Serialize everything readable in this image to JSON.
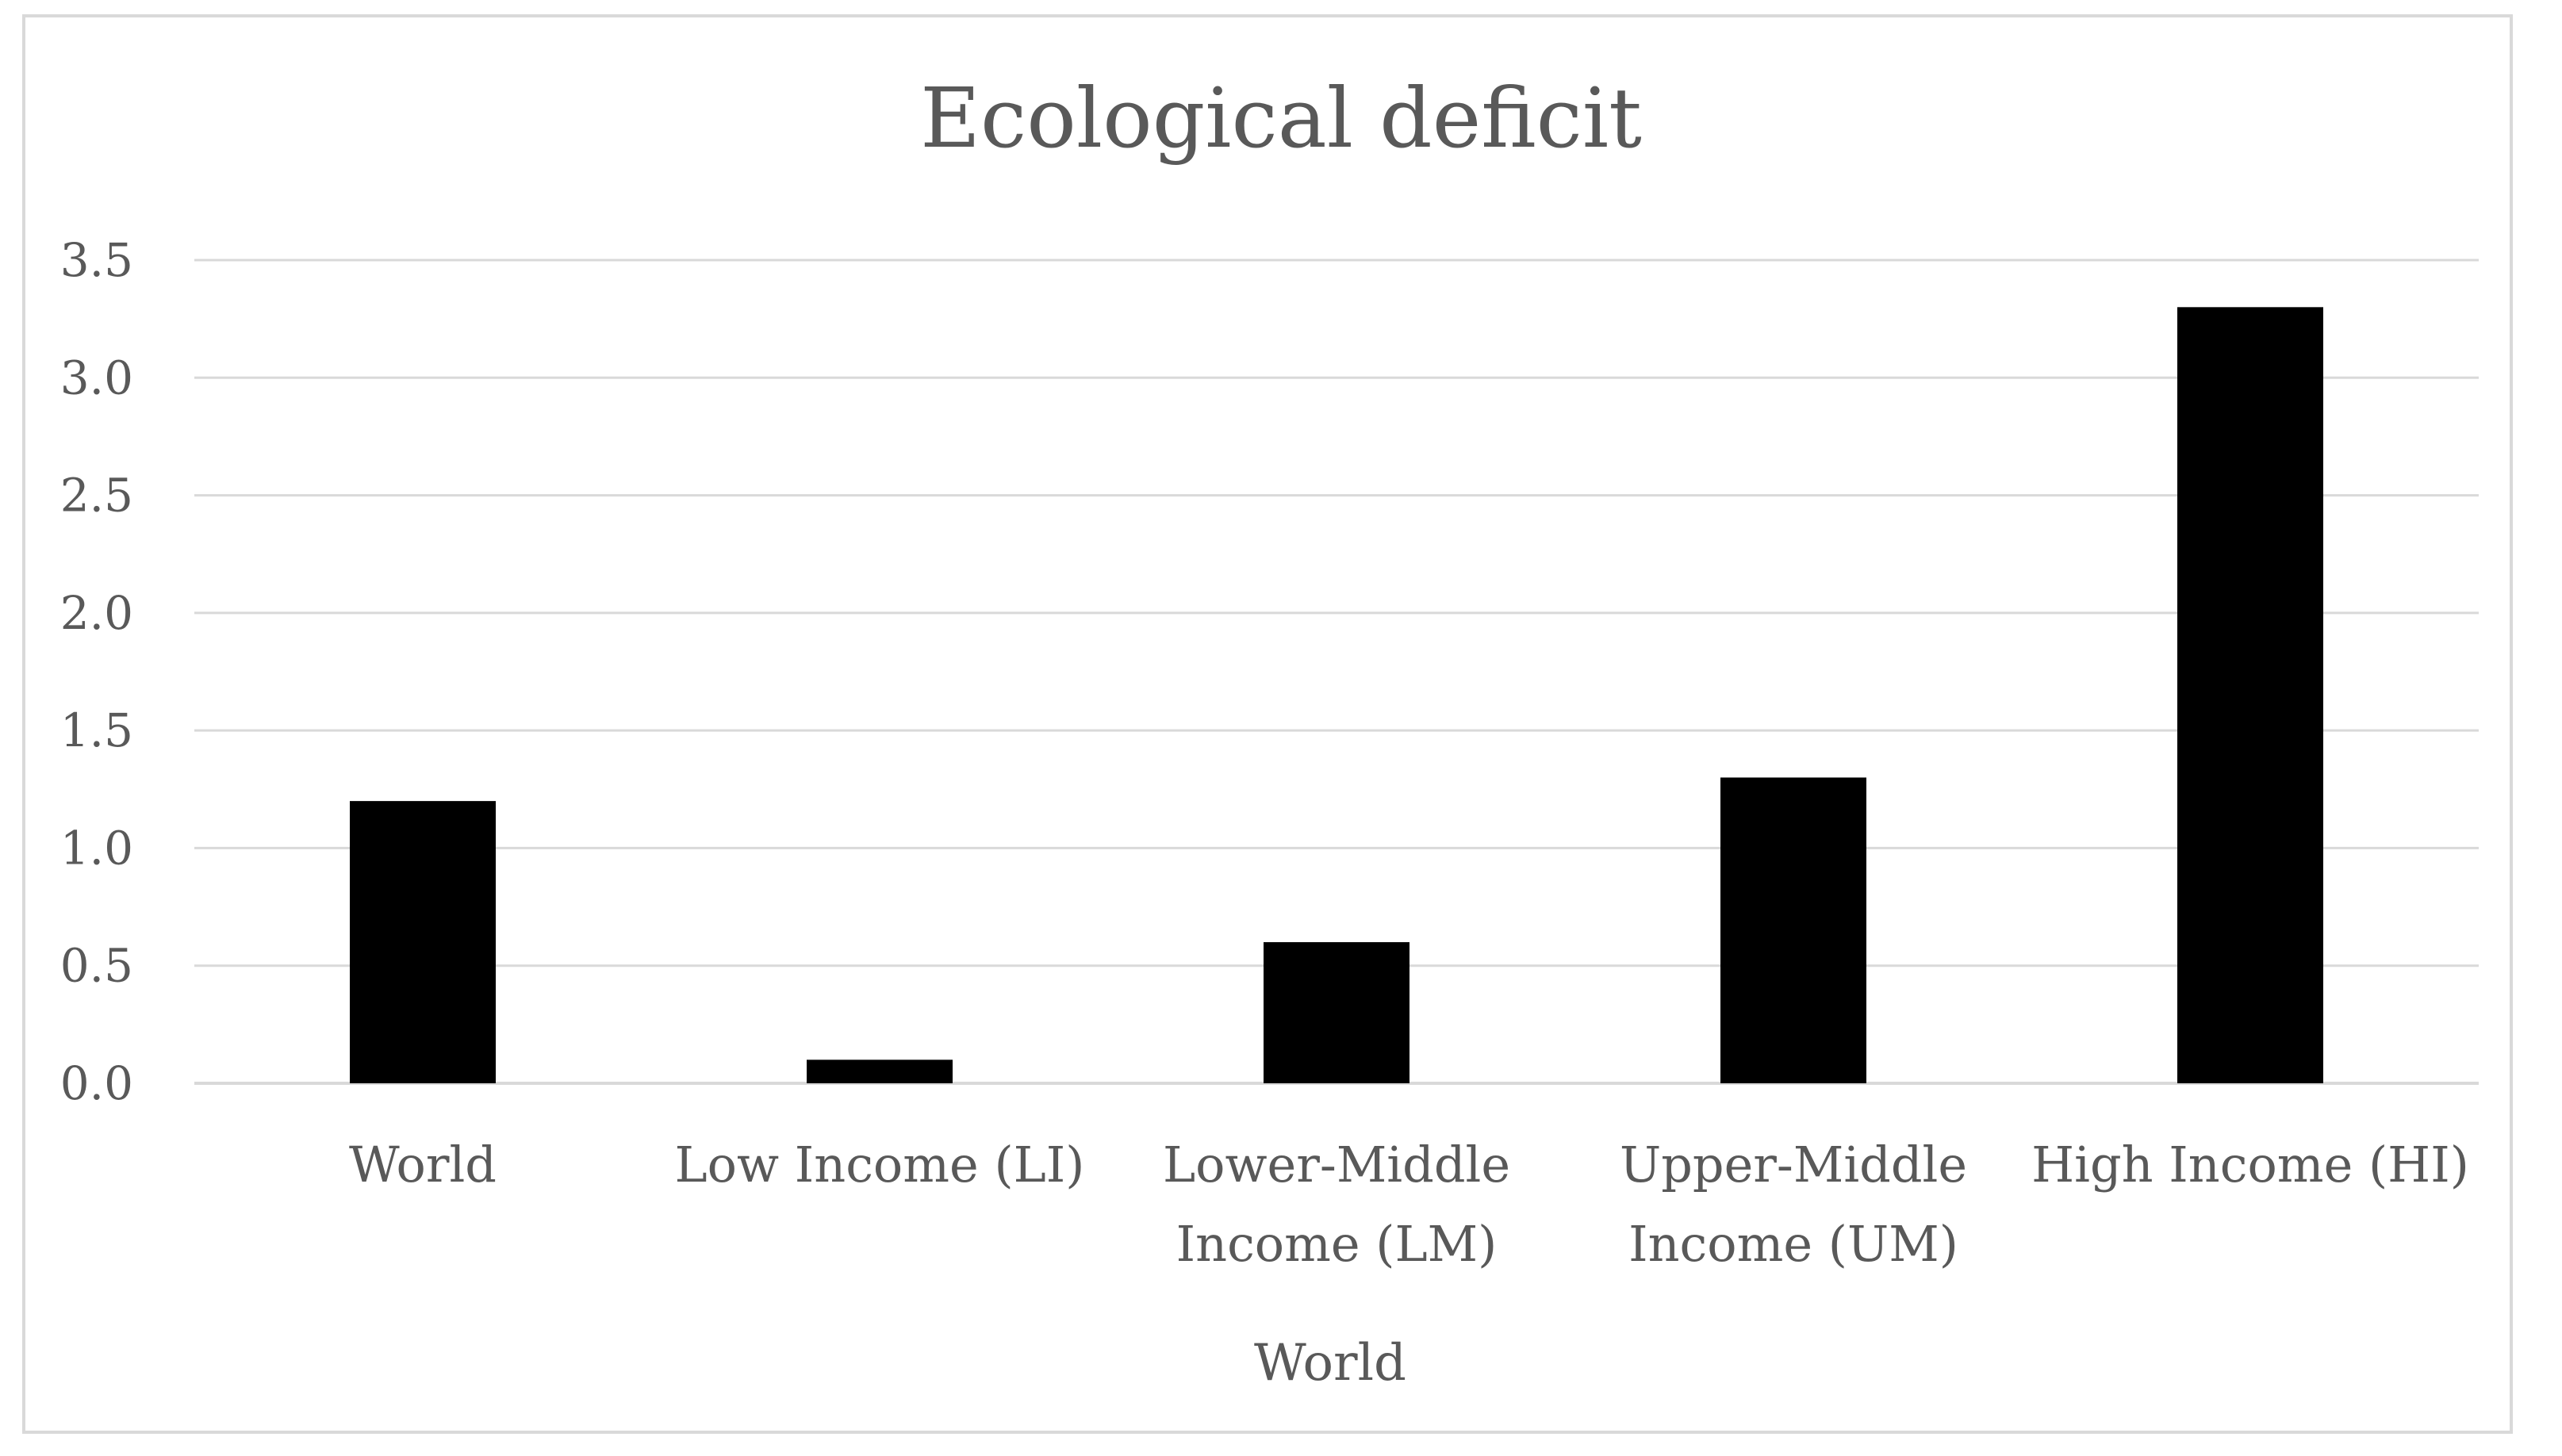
{
  "chart_data": {
    "type": "bar",
    "title": "Ecological deficit",
    "xlabel": "World",
    "ylabel": "",
    "ylim": [
      0,
      3.5
    ],
    "yticks": [
      0.0,
      0.5,
      1.0,
      1.5,
      2.0,
      2.5,
      3.0,
      3.5
    ],
    "ytick_labels": [
      "0.0",
      "0.5",
      "1.0",
      "1.5",
      "2.0",
      "2.5",
      "3.0",
      "3.5"
    ],
    "categories": [
      [
        "World"
      ],
      [
        "Low Income (LI)"
      ],
      [
        "Lower-Middle",
        "Income (LM)"
      ],
      [
        "Upper-Middle",
        "Income (UM)"
      ],
      [
        "High Income (HI)"
      ]
    ],
    "values": [
      1.2,
      0.1,
      0.6,
      1.3,
      3.3
    ],
    "grid": true,
    "legend": "none",
    "colors": {
      "bar": "#000000",
      "grid": "#d9d9d9",
      "text": "#595959"
    }
  }
}
